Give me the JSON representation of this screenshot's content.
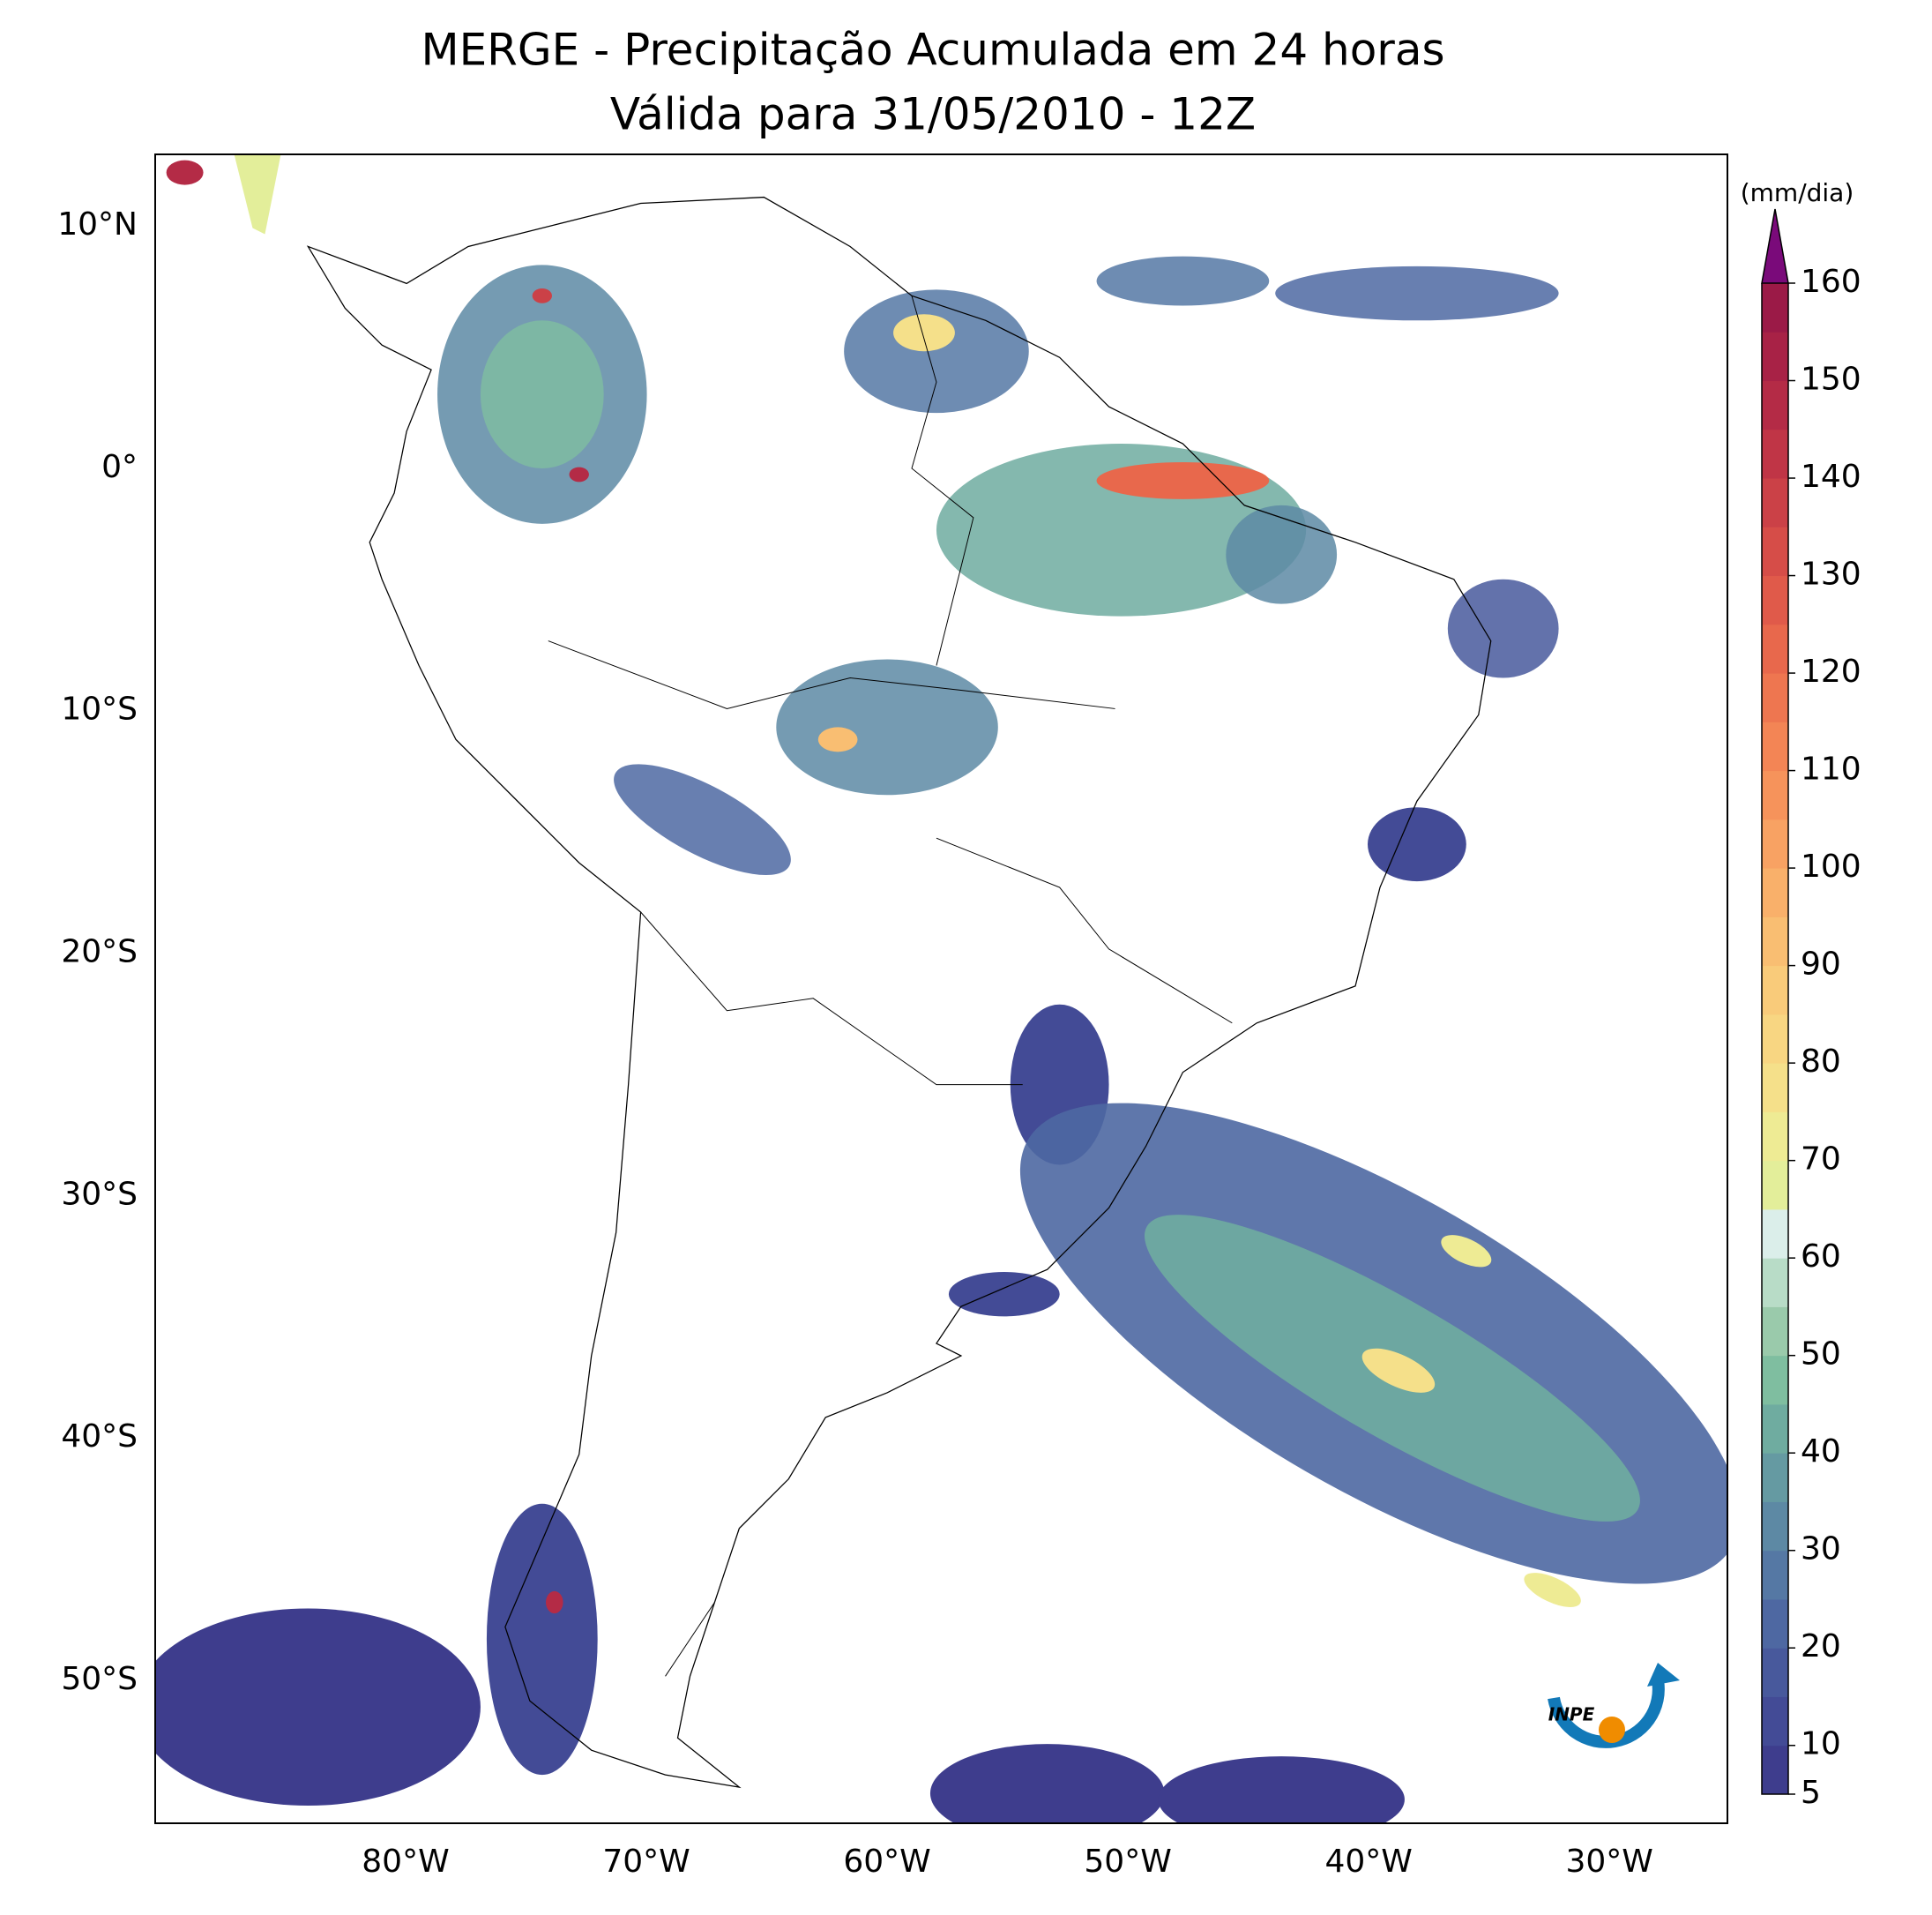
{
  "map": {
    "title": "MERGE - Precipitação Acumulada em 24 horas",
    "subtitle": "Válida para 31/05/2010 - 12Z",
    "xlim": [
      -90.4,
      -25.1
    ],
    "ylim": [
      -55.9,
      12.95
    ],
    "xticks": [
      {
        "value": -80,
        "label": "80°W"
      },
      {
        "value": -70,
        "label": "70°W"
      },
      {
        "value": -60,
        "label": "60°W"
      },
      {
        "value": -50,
        "label": "50°W"
      },
      {
        "value": -40,
        "label": "40°W"
      },
      {
        "value": -30,
        "label": "30°W"
      }
    ],
    "yticks": [
      {
        "value": 10,
        "label": "10°N"
      },
      {
        "value": 0,
        "label": "0°"
      },
      {
        "value": -10,
        "label": "10°S"
      },
      {
        "value": -20,
        "label": "20°S"
      },
      {
        "value": -30,
        "label": "30°S"
      },
      {
        "value": -40,
        "label": "40°S"
      },
      {
        "value": -50,
        "label": "50°S"
      }
    ],
    "colorbar": {
      "label": "(mm/dia)",
      "clim": [
        5,
        160
      ],
      "ticks": [
        5,
        10,
        20,
        30,
        40,
        50,
        60,
        70,
        80,
        90,
        100,
        110,
        120,
        130,
        140,
        150,
        160
      ],
      "colors": [
        "#3e3d8d",
        "#434b96",
        "#48599c",
        "#4e68a2",
        "#5578a4",
        "#5d89a4",
        "#659aa2",
        "#6faca0",
        "#7fbea0",
        "#9acaab",
        "#b8dcc7",
        "#dbeeea",
        "#e3ee9a",
        "#eeeb94",
        "#f5e08a",
        "#f8d682",
        "#f9cb7a",
        "#f9be72",
        "#f9b06a",
        "#f8a263",
        "#f6935b",
        "#f38555",
        "#ee7650",
        "#e8684c",
        "#e05a4a",
        "#d64d48",
        "#cb4147",
        "#c03546",
        "#b42b46",
        "#a82246",
        "#9b1a47"
      ],
      "extend_color": "#7a0a7a"
    },
    "logo_text": "INPE"
  }
}
